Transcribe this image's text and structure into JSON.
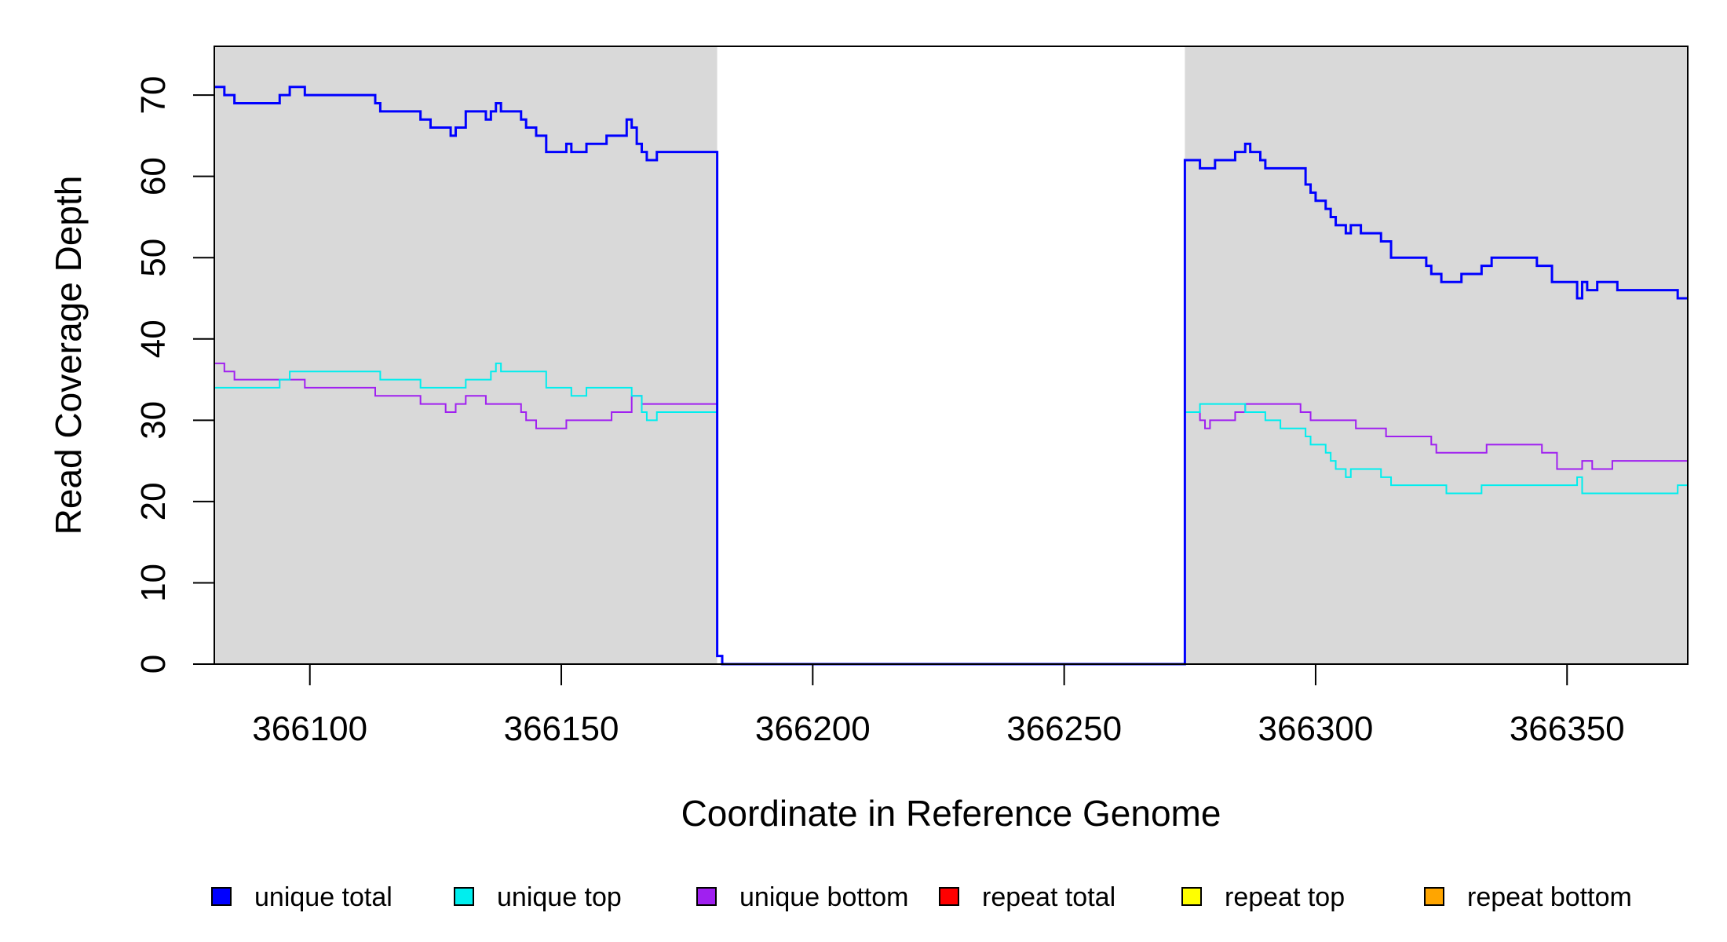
{
  "chart_data": {
    "type": "line",
    "xlabel": "Coordinate in Reference Genome",
    "ylabel": "Read Coverage Depth",
    "xlim": [
      366081,
      366374
    ],
    "ylim": [
      0,
      76
    ],
    "x_ticks": [
      366100,
      366150,
      366200,
      366250,
      366300,
      366350
    ],
    "y_ticks": [
      0,
      10,
      20,
      30,
      40,
      50,
      60,
      70
    ],
    "grid": false,
    "shaded_regions": [
      [
        366081,
        366181
      ],
      [
        366274,
        366374
      ]
    ],
    "shade_color": "#d9d9d9",
    "step": true,
    "legend_position": "bottom",
    "series": [
      {
        "name": "unique total",
        "color": "#0000ff",
        "x": [
          366081,
          366083,
          366085,
          366094,
          366096,
          366099,
          366113,
          366114,
          366122,
          366124,
          366128,
          366129,
          366131,
          366135,
          366136,
          366137,
          366138,
          366142,
          366143,
          366145,
          366147,
          366151,
          366152,
          366155,
          366159,
          366163,
          366164,
          366165,
          366166,
          366167,
          366169,
          366181,
          366182,
          366183,
          366274,
          366277,
          366280,
          366284,
          366286,
          366287,
          366289,
          366290,
          366298,
          366299,
          366300,
          366302,
          366303,
          366304,
          366306,
          366307,
          366309,
          366313,
          366315,
          366322,
          366323,
          366325,
          366329,
          366333,
          366335,
          366344,
          366347,
          366352,
          366353,
          366354,
          366356,
          366360,
          366372,
          366374
        ],
        "y": [
          71,
          70,
          69,
          70,
          71,
          70,
          69,
          68,
          67,
          66,
          65,
          66,
          68,
          67,
          68,
          69,
          68,
          67,
          66,
          65,
          63,
          64,
          63,
          64,
          65,
          67,
          66,
          64,
          63,
          62,
          63,
          1,
          0,
          0,
          62,
          61,
          62,
          63,
          64,
          63,
          62,
          61,
          59,
          58,
          57,
          56,
          55,
          54,
          53,
          54,
          53,
          52,
          50,
          49,
          48,
          47,
          48,
          49,
          50,
          49,
          47,
          45,
          47,
          46,
          47,
          46,
          45,
          45
        ]
      },
      {
        "name": "unique top",
        "color": "#00eeee",
        "x": [
          366081,
          366094,
          366096,
          366114,
          366122,
          366131,
          366136,
          366137,
          366138,
          366147,
          366152,
          366155,
          366164,
          366166,
          366167,
          366169,
          366181,
          366182,
          366183,
          366274,
          366276,
          366277,
          366280,
          366286,
          366287,
          366290,
          366293,
          366298,
          366299,
          366300,
          366302,
          366303,
          366304,
          366305,
          366306,
          366307,
          366313,
          366315,
          366322,
          366326,
          366333,
          366352,
          366353,
          366372,
          366374
        ],
        "y": [
          34,
          35,
          36,
          35,
          34,
          35,
          36,
          37,
          36,
          34,
          33,
          34,
          33,
          31,
          30,
          31,
          1,
          0,
          0,
          31,
          31,
          32,
          32,
          31,
          31,
          30,
          29,
          28,
          27,
          27,
          26,
          25,
          24,
          24,
          23,
          24,
          23,
          22,
          22,
          21,
          22,
          23,
          21,
          22,
          21
        ]
      },
      {
        "name": "unique bottom",
        "color": "#a020f0",
        "x": [
          366081,
          366083,
          366085,
          366099,
          366113,
          366122,
          366127,
          366128,
          366129,
          366131,
          366135,
          366142,
          366143,
          366145,
          366151,
          366160,
          366164,
          366166,
          366181,
          366182,
          366183,
          366274,
          366277,
          366278,
          366279,
          366281,
          366284,
          366286,
          366297,
          366299,
          366308,
          366314,
          366323,
          366324,
          366334,
          366345,
          366348,
          366352,
          366353,
          366355,
          366359,
          366374
        ],
        "y": [
          37,
          36,
          35,
          34,
          33,
          32,
          31,
          31,
          32,
          33,
          32,
          31,
          30,
          29,
          30,
          31,
          33,
          32,
          1,
          0,
          0,
          31,
          30,
          29,
          30,
          30,
          31,
          32,
          31,
          30,
          29,
          28,
          27,
          26,
          27,
          26,
          24,
          24,
          25,
          24,
          25,
          24
        ]
      },
      {
        "name": "repeat total",
        "color": "#ff0000",
        "x": [
          366081,
          366374
        ],
        "y": [
          0,
          0
        ]
      },
      {
        "name": "repeat top",
        "color": "#ffff00",
        "x": [
          366081,
          366374
        ],
        "y": [
          0,
          0
        ]
      },
      {
        "name": "repeat bottom",
        "color": "#ffa500",
        "x": [
          366081,
          366374
        ],
        "y": [
          0,
          0
        ]
      }
    ]
  }
}
